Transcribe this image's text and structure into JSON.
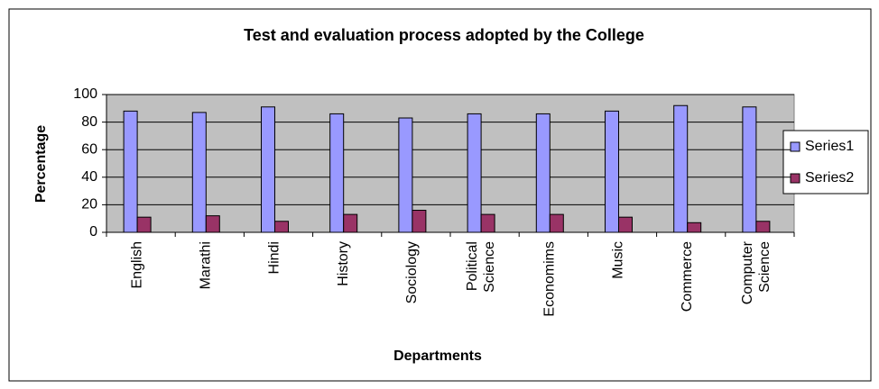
{
  "chart_data": {
    "type": "bar",
    "title": "Test and evaluation process adopted by the College",
    "x_label": "Departments",
    "y_label": "Percentage",
    "categories": [
      "English",
      "Marathi",
      "Hindi",
      "History",
      "Sociology",
      "Political Science",
      "Economims",
      "Music",
      "Commerce",
      "Computer Science"
    ],
    "series": [
      {
        "name": "Series1",
        "color": "#9999ff",
        "values": [
          88,
          87,
          91,
          86,
          83,
          86,
          86,
          88,
          92,
          91
        ]
      },
      {
        "name": "Series2",
        "color": "#993366",
        "values": [
          11,
          12,
          8,
          13,
          16,
          13,
          13,
          11,
          7,
          8
        ]
      }
    ],
    "ylim": [
      0,
      100
    ],
    "yticks": [
      0,
      20,
      40,
      60,
      80,
      100
    ],
    "grid": true,
    "legend": "right"
  }
}
